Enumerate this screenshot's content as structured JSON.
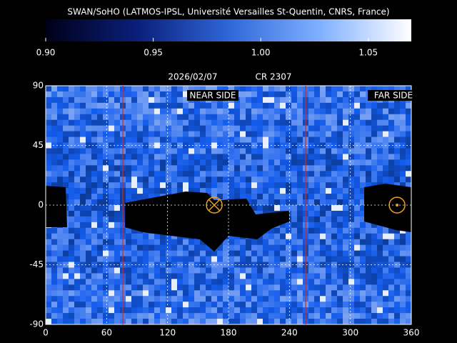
{
  "chart_data": {
    "type": "map",
    "title": "SWAN/SoHO (LATMOS-IPSL, Université Versailles St-Quentin, CNRS, France)",
    "date": "2026/02/07",
    "rotation": "CR 2307",
    "colorbar": {
      "clim": [
        0.9,
        1.07
      ],
      "ticks": [
        {
          "value": 0.9,
          "label": "0.90"
        },
        0.95,
        {
          "value": 1.0,
          "label": "1.00"
        },
        1.05
      ],
      "colors": [
        "#000018",
        "#0a1f7a",
        "#2f66d8",
        "#7fb0ff",
        "#ffffff"
      ]
    },
    "xlim": [
      0,
      360
    ],
    "xticks": [
      0,
      60,
      120,
      180,
      240,
      300,
      360
    ],
    "ylim": [
      -90,
      90
    ],
    "yticks": [
      90,
      45,
      0,
      -45,
      -90
    ],
    "grid": true,
    "grid_color": "#ffffff",
    "vlines": {
      "x": [
        76,
        256
      ],
      "color": "#c03030"
    },
    "near_side": {
      "label": "NEAR SIDE",
      "x": 166,
      "y": 0
    },
    "far_side": {
      "label": "FAR SIDE",
      "x": 346,
      "y": 0
    },
    "marker_color": "#f0a020"
  }
}
